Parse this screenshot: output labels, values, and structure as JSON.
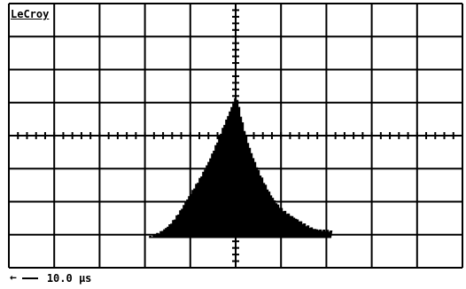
{
  "instrument": {
    "brand": "LeCroy",
    "timebase_label": "10.0 µs",
    "timebase_direction": "left-arrow-icon"
  },
  "display": {
    "grid_divisions_x": 10,
    "grid_divisions_y": 8,
    "trace_color": "#000000",
    "background_color": "#ffffff"
  },
  "chart_data": {
    "type": "area",
    "x_divisions": 10,
    "y_divisions": 8,
    "peak_x_div": 5.0,
    "peak_y_div": 5.2,
    "onset_x_div": 3.1,
    "end_x_div": 7.1,
    "baseline_y_div": 0.0
  }
}
